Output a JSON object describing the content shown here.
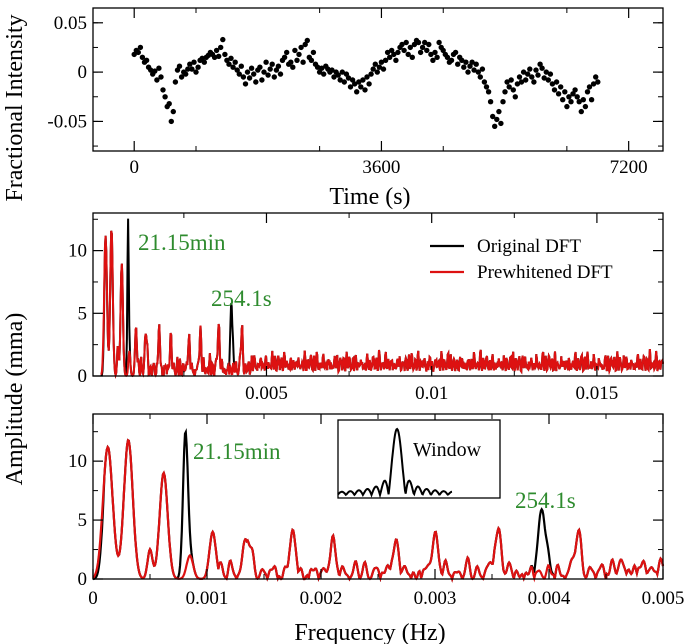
{
  "chart_data": [
    {
      "id": "lightcurve",
      "type": "scatter",
      "ylabel": "Fractional Intensity",
      "xlabel": "Time (s)",
      "xlim": [
        -600,
        7700
      ],
      "ylim": [
        -0.08,
        0.065
      ],
      "xticks": [
        {
          "v": 0,
          "label": "0"
        },
        {
          "v": 3600,
          "label": "3600"
        },
        {
          "v": 7200,
          "label": "7200"
        }
      ],
      "yticks": [
        {
          "v": 0.05,
          "label": "0.05"
        },
        {
          "v": 0,
          "label": "0"
        },
        {
          "v": -0.05,
          "label": "-0.05"
        }
      ],
      "points": [
        [
          0,
          0.018
        ],
        [
          30,
          0.022
        ],
        [
          60,
          0.02
        ],
        [
          90,
          0.025
        ],
        [
          120,
          0.015
        ],
        [
          150,
          0.01
        ],
        [
          180,
          0.012
        ],
        [
          210,
          0.005
        ],
        [
          240,
          0.002
        ],
        [
          270,
          -0.002
        ],
        [
          300,
          0.001
        ],
        [
          330,
          -0.008
        ],
        [
          360,
          0.004
        ],
        [
          390,
          -0.005
        ],
        [
          420,
          -0.018
        ],
        [
          450,
          -0.025
        ],
        [
          480,
          -0.035
        ],
        [
          510,
          -0.032
        ],
        [
          540,
          -0.05
        ],
        [
          570,
          -0.04
        ],
        [
          600,
          -0.01
        ],
        [
          630,
          0.002
        ],
        [
          660,
          0.006
        ],
        [
          690,
          -0.005
        ],
        [
          720,
          0.0
        ],
        [
          750,
          -0.002
        ],
        [
          780,
          0.003
        ],
        [
          810,
          0.008
        ],
        [
          840,
          0.003
        ],
        [
          870,
          0.01
        ],
        [
          900,
          0.0
        ],
        [
          930,
          0.005
        ],
        [
          960,
          0.012
        ],
        [
          990,
          0.014
        ],
        [
          1020,
          0.01
        ],
        [
          1050,
          0.015
        ],
        [
          1080,
          0.017
        ],
        [
          1110,
          0.02
        ],
        [
          1140,
          0.018
        ],
        [
          1170,
          0.015
        ],
        [
          1200,
          0.022
        ],
        [
          1230,
          0.016
        ],
        [
          1260,
          0.025
        ],
        [
          1290,
          0.033
        ],
        [
          1320,
          0.018
        ],
        [
          1350,
          0.012
        ],
        [
          1380,
          0.008
        ],
        [
          1410,
          0.014
        ],
        [
          1440,
          0.005
        ],
        [
          1470,
          0.01
        ],
        [
          1500,
          0.002
        ],
        [
          1530,
          -0.002
        ],
        [
          1560,
          0.006
        ],
        [
          1590,
          -0.005
        ],
        [
          1620,
          -0.012
        ],
        [
          1650,
          0.0
        ],
        [
          1680,
          -0.006
        ],
        [
          1710,
          0.004
        ],
        [
          1740,
          -0.002
        ],
        [
          1770,
          -0.01
        ],
        [
          1800,
          0.002
        ],
        [
          1830,
          0.005
        ],
        [
          1860,
          -0.008
        ],
        [
          1890,
          0.0
        ],
        [
          1920,
          0.01
        ],
        [
          1950,
          -0.003
        ],
        [
          1980,
          0.003
        ],
        [
          2010,
          0.008
        ],
        [
          2040,
          -0.005
        ],
        [
          2070,
          0.002
        ],
        [
          2100,
          0.006
        ],
        [
          2130,
          -0.002
        ],
        [
          2160,
          0.012
        ],
        [
          2190,
          0.015
        ],
        [
          2220,
          0.02
        ],
        [
          2250,
          0.008
        ],
        [
          2280,
          0.01
        ],
        [
          2310,
          0.005
        ],
        [
          2340,
          0.022
        ],
        [
          2370,
          0.012
        ],
        [
          2400,
          0.018
        ],
        [
          2430,
          0.025
        ],
        [
          2460,
          0.01
        ],
        [
          2490,
          0.028
        ],
        [
          2520,
          0.032
        ],
        [
          2550,
          0.015
        ],
        [
          2580,
          0.012
        ],
        [
          2610,
          0.02
        ],
        [
          2640,
          0.008
        ],
        [
          2670,
          0.005
        ],
        [
          2700,
          0.0
        ],
        [
          2730,
          0.004
        ],
        [
          2760,
          -0.002
        ],
        [
          2790,
          0.006
        ],
        [
          2820,
          0.003
        ],
        [
          2850,
          0.0
        ],
        [
          2880,
          0.002
        ],
        [
          2910,
          -0.005
        ],
        [
          2940,
          0.0
        ],
        [
          2970,
          -0.003
        ],
        [
          3000,
          -0.008
        ],
        [
          3030,
          0.0
        ],
        [
          3060,
          -0.01
        ],
        [
          3090,
          -0.002
        ],
        [
          3120,
          -0.006
        ],
        [
          3150,
          -0.015
        ],
        [
          3180,
          -0.008
        ],
        [
          3210,
          -0.012
        ],
        [
          3240,
          -0.02
        ],
        [
          3270,
          -0.01
        ],
        [
          3300,
          -0.015
        ],
        [
          3330,
          -0.008
        ],
        [
          3360,
          -0.018
        ],
        [
          3390,
          -0.005
        ],
        [
          3420,
          -0.012
        ],
        [
          3450,
          -0.002
        ],
        [
          3480,
          0.003
        ],
        [
          3510,
          0.008
        ],
        [
          3540,
          0.0
        ],
        [
          3570,
          0.005
        ],
        [
          3600,
          0.01
        ],
        [
          3630,
          0.003
        ],
        [
          3660,
          0.012
        ],
        [
          3690,
          0.02
        ],
        [
          3720,
          0.015
        ],
        [
          3750,
          0.022
        ],
        [
          3780,
          0.018
        ],
        [
          3810,
          0.012
        ],
        [
          3840,
          0.02
        ],
        [
          3870,
          0.025
        ],
        [
          3900,
          0.028
        ],
        [
          3930,
          0.022
        ],
        [
          3960,
          0.03
        ],
        [
          3990,
          0.018
        ],
        [
          4020,
          0.025
        ],
        [
          4050,
          0.015
        ],
        [
          4080,
          0.028
        ],
        [
          4110,
          0.032
        ],
        [
          4140,
          0.03
        ],
        [
          4170,
          0.02
        ],
        [
          4200,
          0.025
        ],
        [
          4230,
          0.03
        ],
        [
          4260,
          0.022
        ],
        [
          4290,
          0.028
        ],
        [
          4320,
          0.018
        ],
        [
          4350,
          0.012
        ],
        [
          4380,
          0.02
        ],
        [
          4410,
          0.015
        ],
        [
          4440,
          0.03
        ],
        [
          4470,
          0.025
        ],
        [
          4500,
          0.022
        ],
        [
          4530,
          0.018
        ],
        [
          4560,
          0.015
        ],
        [
          4590,
          0.01
        ],
        [
          4620,
          0.012
        ],
        [
          4650,
          0.018
        ],
        [
          4680,
          0.02
        ],
        [
          4710,
          0.008
        ],
        [
          4740,
          0.015
        ],
        [
          4770,
          0.012
        ],
        [
          4800,
          0.005
        ],
        [
          4830,
          0.01
        ],
        [
          4860,
          0.0
        ],
        [
          4890,
          0.006
        ],
        [
          4920,
          0.01
        ],
        [
          4950,
          0.002
        ],
        [
          4980,
          0.008
        ],
        [
          5010,
          0.0
        ],
        [
          5040,
          -0.005
        ],
        [
          5070,
          0.003
        ],
        [
          5100,
          -0.01
        ],
        [
          5130,
          -0.015
        ],
        [
          5160,
          -0.02
        ],
        [
          5190,
          -0.03
        ],
        [
          5220,
          -0.045
        ],
        [
          5250,
          -0.055
        ],
        [
          5280,
          -0.048
        ],
        [
          5310,
          -0.04
        ],
        [
          5340,
          -0.052
        ],
        [
          5370,
          -0.03
        ],
        [
          5400,
          -0.02
        ],
        [
          5430,
          -0.01
        ],
        [
          5460,
          -0.015
        ],
        [
          5490,
          -0.008
        ],
        [
          5520,
          -0.018
        ],
        [
          5550,
          -0.025
        ],
        [
          5580,
          -0.012
        ],
        [
          5610,
          -0.005
        ],
        [
          5640,
          -0.01
        ],
        [
          5670,
          0.0
        ],
        [
          5700,
          -0.008
        ],
        [
          5730,
          -0.002
        ],
        [
          5760,
          0.003
        ],
        [
          5790,
          -0.005
        ],
        [
          5820,
          -0.01
        ],
        [
          5850,
          0.002
        ],
        [
          5880,
          -0.003
        ],
        [
          5910,
          0.008
        ],
        [
          5940,
          0.004
        ],
        [
          5970,
          -0.006
        ],
        [
          6000,
          0.0
        ],
        [
          6030,
          -0.008
        ],
        [
          6060,
          -0.002
        ],
        [
          6090,
          -0.012
        ],
        [
          6120,
          -0.018
        ],
        [
          6150,
          -0.01
        ],
        [
          6180,
          -0.022
        ],
        [
          6210,
          -0.015
        ],
        [
          6240,
          -0.028
        ],
        [
          6270,
          -0.02
        ],
        [
          6300,
          -0.035
        ],
        [
          6330,
          -0.025
        ],
        [
          6360,
          -0.03
        ],
        [
          6390,
          -0.022
        ],
        [
          6420,
          -0.018
        ],
        [
          6450,
          -0.025
        ],
        [
          6480,
          -0.03
        ],
        [
          6510,
          -0.04
        ],
        [
          6540,
          -0.028
        ],
        [
          6570,
          -0.035
        ],
        [
          6600,
          -0.02
        ],
        [
          6630,
          -0.015
        ],
        [
          6660,
          -0.028
        ],
        [
          6690,
          -0.012
        ],
        [
          6720,
          -0.005
        ],
        [
          6750,
          -0.01
        ]
      ]
    },
    {
      "id": "dft-full",
      "type": "line",
      "xlim": [
        -0.00025,
        0.017
      ],
      "ylim": [
        0,
        13
      ],
      "xticks": [
        {
          "v": 0.005,
          "label": "0.005"
        },
        {
          "v": 0.01,
          "label": "0.01"
        },
        {
          "v": 0.015,
          "label": "0.015"
        }
      ],
      "yticks": [
        {
          "v": 0,
          "label": "0"
        },
        {
          "v": 5,
          "label": "5"
        },
        {
          "v": 10,
          "label": "10"
        }
      ],
      "ylabel": "Amplitude (mma)",
      "series": [
        {
          "name": "Original DFT",
          "color": "#000000"
        },
        {
          "name": "Prewhitened DFT",
          "color": "#dd1111"
        }
      ],
      "legend": "top-right",
      "annotations": [
        {
          "text": "21.15min",
          "x": 0.00118,
          "y": 11.2
        },
        {
          "text": "254.1s",
          "x": 0.0041,
          "y": 6.3
        }
      ]
    },
    {
      "id": "dft-zoom",
      "type": "line",
      "xlabel": "Frequency (Hz)",
      "xlim": [
        0,
        0.005
      ],
      "ylim": [
        0,
        14
      ],
      "xticks": [
        {
          "v": 0,
          "label": "0"
        },
        {
          "v": 0.001,
          "label": "0.001"
        },
        {
          "v": 0.002,
          "label": "0.002"
        },
        {
          "v": 0.003,
          "label": "0.003"
        },
        {
          "v": 0.004,
          "label": "0.004"
        },
        {
          "v": 0.005,
          "label": "0.005"
        }
      ],
      "yticks": [
        {
          "v": 0,
          "label": "0"
        },
        {
          "v": 5,
          "label": "5"
        },
        {
          "v": 10,
          "label": "10"
        }
      ],
      "series": [
        {
          "name": "Original DFT",
          "color": "#000000"
        },
        {
          "name": "Prewhitened DFT",
          "color": "#dd1111"
        }
      ],
      "annotations": [
        {
          "text": "21.15min",
          "x": 0.00095,
          "y": 10.8
        },
        {
          "text": "254.1s",
          "x": 0.0039,
          "y": 6.3
        }
      ],
      "inset_label": "Window"
    }
  ]
}
